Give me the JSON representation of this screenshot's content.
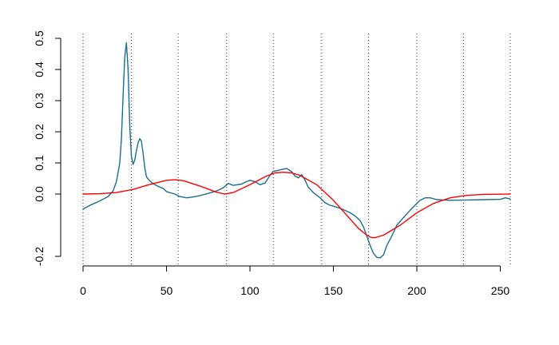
{
  "chart_data": {
    "type": "line",
    "title": "",
    "xlabel": "",
    "ylabel": "",
    "xlim": [
      0,
      256
    ],
    "ylim": [
      -0.2,
      0.5
    ],
    "x_ticks": [
      0,
      50,
      100,
      150,
      200,
      250
    ],
    "y_ticks": [
      -0.2,
      0.0,
      0.1,
      0.2,
      0.3,
      0.4,
      0.5
    ],
    "x_tick_labels": [
      "0",
      "50",
      "100",
      "150",
      "200",
      "250"
    ],
    "y_tick_labels": [
      "-0.2",
      "0.0",
      "0.1",
      "0.2",
      "0.3",
      "0.4",
      "0.5"
    ],
    "grid": false,
    "vertical_dotted_lines_x": [
      0,
      29,
      57,
      86,
      114,
      143,
      171,
      200,
      228,
      256
    ],
    "series": [
      {
        "color": "#1a6e8e",
        "x": [
          0,
          5,
          10,
          15,
          18,
          20,
          22,
          23,
          24,
          25,
          26,
          27,
          28,
          29,
          30,
          31,
          32,
          33,
          34,
          35,
          36,
          37,
          38,
          40,
          42,
          45,
          48,
          50,
          55,
          58,
          62,
          65,
          70,
          75,
          80,
          84,
          87,
          90,
          95,
          98,
          100,
          103,
          106,
          109,
          112,
          114,
          116,
          119,
          122,
          125,
          127,
          129,
          131,
          133,
          135,
          138,
          142,
          145,
          148,
          152,
          155,
          158,
          160,
          163,
          166,
          168,
          170,
          172,
          174,
          176,
          178,
          180,
          182,
          185,
          188,
          192,
          196,
          200,
          202,
          205,
          208,
          212,
          220,
          230,
          240,
          250,
          253,
          256
        ],
        "values": [
          -0.048,
          -0.034,
          -0.022,
          -0.008,
          0.01,
          0.04,
          0.1,
          0.18,
          0.32,
          0.44,
          0.486,
          0.4,
          0.22,
          0.12,
          0.095,
          0.11,
          0.14,
          0.165,
          0.178,
          0.17,
          0.13,
          0.085,
          0.055,
          0.042,
          0.033,
          0.025,
          0.018,
          0.008,
          0.0,
          -0.008,
          -0.012,
          -0.01,
          -0.005,
          0.002,
          0.01,
          0.02,
          0.034,
          0.028,
          0.032,
          0.04,
          0.044,
          0.04,
          0.03,
          0.035,
          0.06,
          0.073,
          0.075,
          0.079,
          0.082,
          0.072,
          0.058,
          0.052,
          0.062,
          0.045,
          0.022,
          0.005,
          -0.012,
          -0.028,
          -0.036,
          -0.042,
          -0.048,
          -0.055,
          -0.06,
          -0.07,
          -0.085,
          -0.105,
          -0.135,
          -0.165,
          -0.19,
          -0.203,
          -0.205,
          -0.195,
          -0.165,
          -0.135,
          -0.1,
          -0.075,
          -0.052,
          -0.03,
          -0.02,
          -0.012,
          -0.012,
          -0.018,
          -0.02,
          -0.019,
          -0.018,
          -0.017,
          -0.012,
          -0.016
        ]
      },
      {
        "color": "#ff0000",
        "x": [
          0,
          10,
          20,
          30,
          40,
          50,
          55,
          60,
          70,
          80,
          85,
          90,
          100,
          110,
          115,
          120,
          125,
          130,
          140,
          150,
          160,
          165,
          170,
          173,
          175,
          180,
          190,
          200,
          210,
          220,
          230,
          240,
          256
        ],
        "values": [
          0.0,
          0.001,
          0.005,
          0.015,
          0.031,
          0.044,
          0.046,
          0.043,
          0.026,
          0.006,
          0.0,
          0.005,
          0.03,
          0.058,
          0.068,
          0.07,
          0.068,
          0.06,
          0.03,
          -0.02,
          -0.08,
          -0.11,
          -0.132,
          -0.14,
          -0.14,
          -0.132,
          -0.1,
          -0.06,
          -0.03,
          -0.012,
          -0.004,
          -0.001,
          0.0
        ]
      }
    ]
  }
}
